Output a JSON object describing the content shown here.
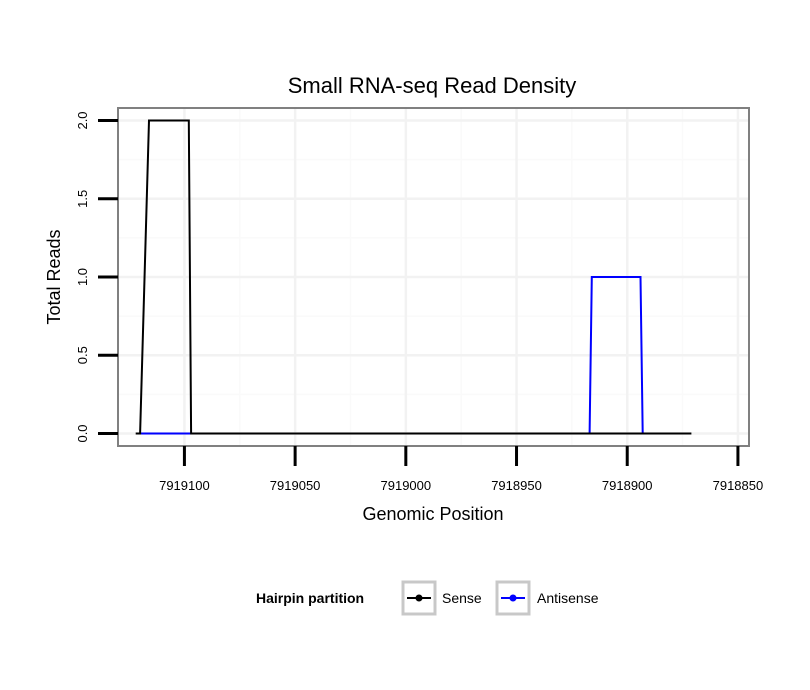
{
  "chart_data": {
    "type": "line",
    "title": "Small RNA-seq Read Density",
    "xlabel": "Genomic Position",
    "ylabel": "Total Reads",
    "xlim": [
      7919130,
      7918845
    ],
    "x_reversed": true,
    "ylim": [
      -0.08,
      2.08
    ],
    "x_ticks": [
      7919100,
      7919050,
      7919000,
      7918950,
      7918900,
      7918850
    ],
    "x_tick_labels": [
      "7919100",
      "7919050",
      "7919000",
      "7918950",
      "7918900",
      "7918850"
    ],
    "y_ticks": [
      0,
      0.5,
      1,
      1.5,
      2
    ],
    "y_tick_labels": [
      "0.0",
      "0.5",
      "1.0",
      "1.5",
      "2.0"
    ],
    "grid": true,
    "series": [
      {
        "name": "Sense",
        "color": "#000000",
        "x": [
          7919122,
          7919120,
          7919116,
          7919098,
          7919097,
          7919097,
          7918871
        ],
        "y": [
          0,
          0,
          2,
          2,
          0,
          0,
          0
        ]
      },
      {
        "name": "Antisense",
        "color": "#0000ff",
        "x": [
          7919120,
          7919097,
          7918917,
          7918916,
          7918894,
          7918893
        ],
        "y": [
          0,
          0,
          0,
          1,
          1,
          0
        ]
      }
    ],
    "legend": {
      "title": "Hairpin partition",
      "position": "bottom",
      "entries": [
        "Sense",
        "Antisense"
      ]
    }
  }
}
